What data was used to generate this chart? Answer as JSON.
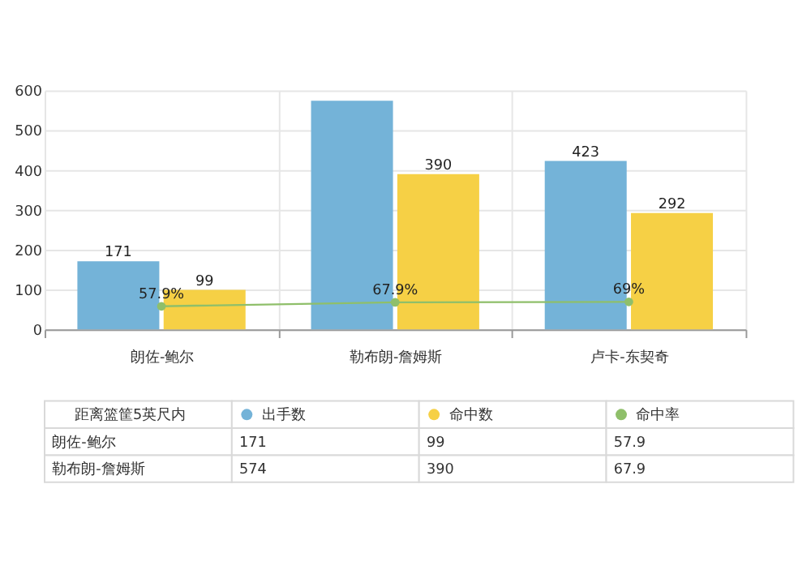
{
  "chart_data": {
    "type": "bar",
    "categories": [
      "朗佐-鲍尔",
      "勒布朗-詹姆斯",
      "卢卡-东契奇"
    ],
    "series": [
      {
        "name": "出手数",
        "color": "#74b3d8",
        "values": [
          171,
          574,
          423
        ],
        "value_labels": [
          "171",
          null,
          "423"
        ]
      },
      {
        "name": "命中数",
        "color": "#f6d045",
        "values": [
          99,
          390,
          292
        ],
        "value_labels": [
          "99",
          "390",
          "292"
        ]
      },
      {
        "name": "命中率",
        "type": "line",
        "color": "#8fbf6a",
        "values": [
          57.9,
          67.9,
          69
        ],
        "value_labels": [
          "57.9%",
          "67.9%",
          "69%"
        ]
      }
    ],
    "legend_title": "距离篮筐5英尺内",
    "legend": "bottom",
    "annotations": [
      "171",
      "99",
      "57.9",
      "574",
      "390",
      "67.9"
    ],
    "marker": "circle",
    "ylim": [
      0,
      600
    ],
    "yticks": [
      0,
      100,
      200,
      300,
      400,
      500,
      600
    ],
    "grid": true
  }
}
